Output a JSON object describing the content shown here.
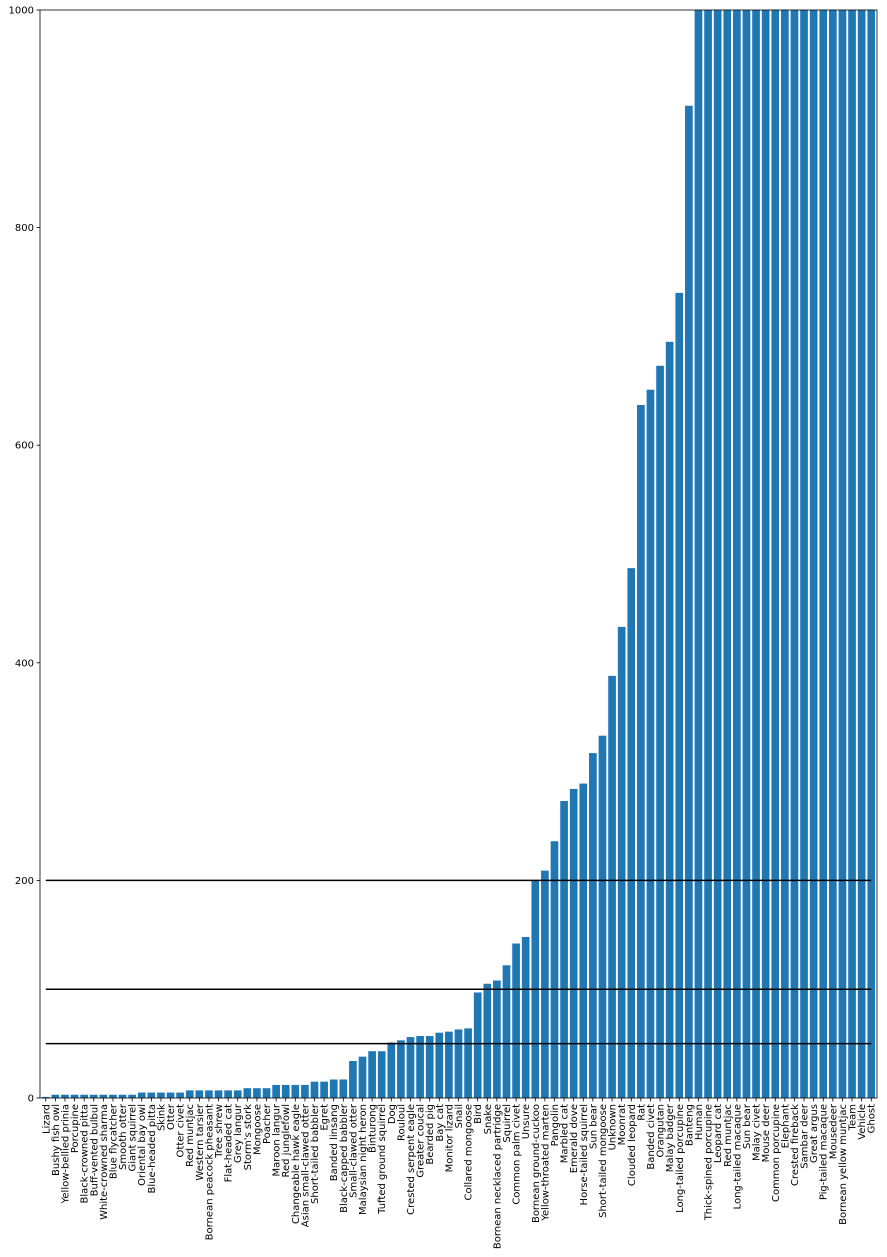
{
  "chart_data": {
    "type": "bar",
    "title": "",
    "xlabel": "",
    "ylabel": "",
    "ylim": [
      0,
      1000
    ],
    "yticks": [
      0,
      200,
      400,
      600,
      800,
      1000
    ],
    "grid": false,
    "bar_color": "#1f77b4",
    "hline_color": "#000000",
    "hlines": [
      50,
      100,
      200
    ],
    "categories": [
      "Lizard",
      "Bushy fish owl",
      "Yellow-bellied prinia",
      "Porcupine",
      "Black-crowned pitta",
      "Buff-vented bulbul",
      "White-crowned sharma",
      "Blue flycatcher",
      "Smooth otter",
      "Giant squirrel",
      "Oriental bay owl",
      "Blue-headed pitta",
      "Skink",
      "Otter",
      "Otter civet",
      "Red muntjac",
      "Western tarsier",
      "Bornean peacock pheasant",
      "Tree shrew",
      "Flat-headed cat",
      "Grey langur",
      "Storm's stork",
      "Mongoose",
      "Poacher",
      "Maroon langur",
      "Red junglefowl",
      "Changeable hawk eagle",
      "Asian small-clawed otter",
      "Short-tailed babbler",
      "Egret",
      "Banded linsang",
      "Black-capped babbler",
      "Small-clawed otter",
      "Malaysian night heron",
      "Binturong",
      "Tufted ground squirrel",
      "Dog",
      "Rouloul",
      "Crested serpent eagle",
      "Greater coucal",
      "Bearded pig",
      "Bay cat",
      "Monitor lizard",
      "Snail",
      "Collared mongoose",
      "Bird",
      "Snake",
      "Bornean necklaced partridge",
      "Squirrel",
      "Common palm civet",
      "Unsure",
      "Bornean ground-cuckoo",
      "Yellow-throated marten",
      "Pangolin",
      "Marbled cat",
      "Emerald dove",
      "Horse-tailed squirrel",
      "Sun bear",
      "Short-tailed mongoose",
      "Unknown",
      "Moonrat",
      "Clouded leopard",
      "Rat",
      "Banded civet",
      "Orangutan",
      "Malay badger",
      "Long-tailed porcupine",
      "Banteng",
      "Human",
      "Thick-spined porcupine",
      "Leopard cat",
      "Red muntjac",
      "Long-tailed macaque",
      "Sun bear",
      "Malay civet",
      "Mouse deer",
      "Common porcupine",
      "Elephant",
      "Crested fireback",
      "Sambar deer",
      "Great argus",
      "Pig-tailed macaque",
      "Mousedeer",
      "Bornean yellow muntjac",
      "Team",
      "Vehicle",
      "Ghost"
    ],
    "values": [
      1,
      3,
      3,
      3,
      3,
      3,
      3,
      3,
      3,
      3,
      5,
      5,
      5,
      5,
      5,
      7,
      7,
      7,
      7,
      7,
      7,
      9,
      9,
      9,
      12,
      12,
      12,
      12,
      15,
      15,
      17,
      17,
      34,
      38,
      43,
      43,
      51,
      53,
      56,
      57,
      57,
      60,
      61,
      63,
      64,
      97,
      105,
      108,
      122,
      142,
      148,
      200,
      209,
      236,
      273,
      284,
      289,
      317,
      333,
      388,
      433,
      487,
      637,
      651,
      673,
      695,
      740,
      912,
      1000,
      1000,
      1000,
      1000,
      1000,
      1000,
      1000,
      1000,
      1000,
      1000,
      1000,
      1000,
      1000,
      1000,
      1000,
      1000,
      1000,
      1000,
      1000
    ]
  }
}
